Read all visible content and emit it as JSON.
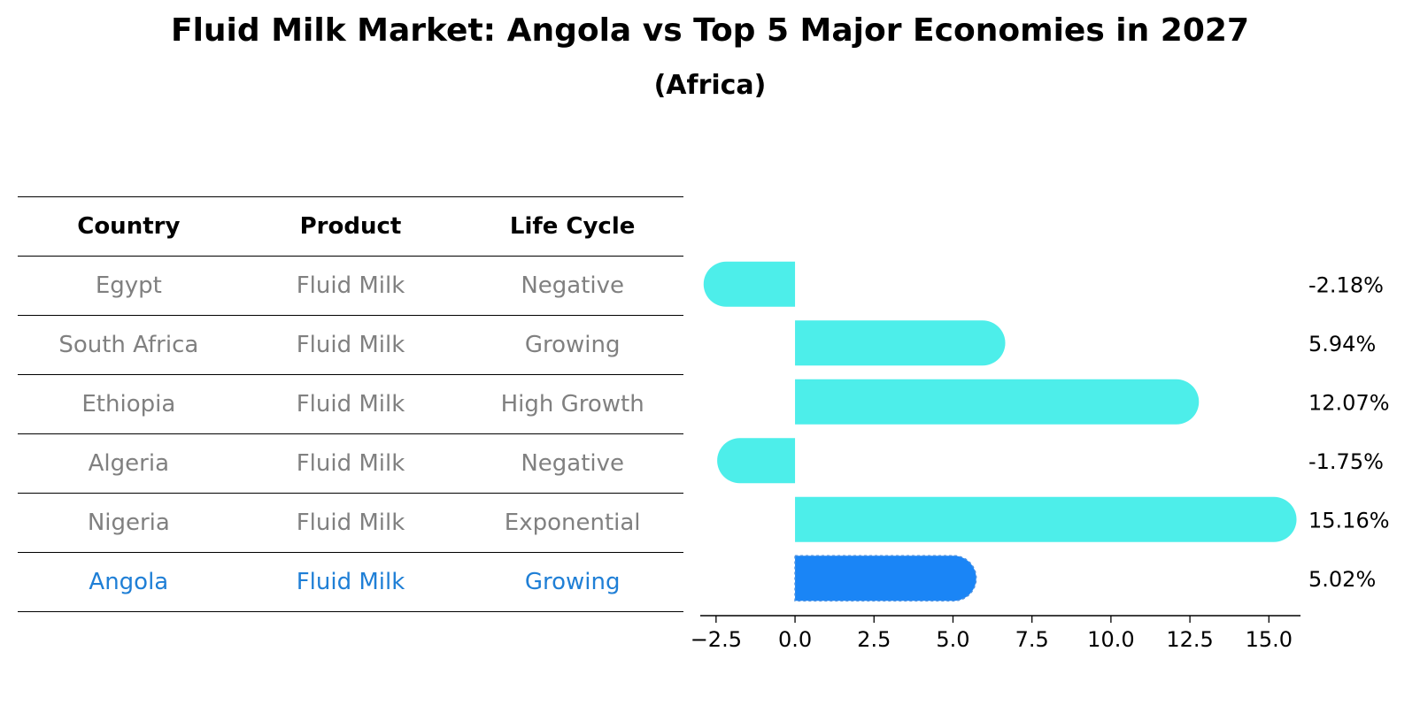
{
  "title": "Fluid Milk Market: Angola vs Top 5 Major Economies in 2027",
  "subtitle": "(Africa)",
  "table": {
    "headers": [
      "Country",
      "Product",
      "Life Cycle"
    ],
    "rows": [
      {
        "country": "Egypt",
        "product": "Fluid Milk",
        "life_cycle": "Negative"
      },
      {
        "country": "South Africa",
        "product": "Fluid Milk",
        "life_cycle": "Growing"
      },
      {
        "country": "Ethiopia",
        "product": "Fluid Milk",
        "life_cycle": "High Growth"
      },
      {
        "country": "Algeria",
        "product": "Fluid Milk",
        "life_cycle": "Negative"
      },
      {
        "country": "Nigeria",
        "product": "Fluid Milk",
        "life_cycle": "Exponential"
      },
      {
        "country": "Angola",
        "product": "Fluid Milk",
        "life_cycle": "Growing"
      }
    ]
  },
  "colors": {
    "bar": "#4DEEEA",
    "highlight_bar": "#1A85F6",
    "highlight_text": "#1F7FD6",
    "muted_text": "#808080"
  },
  "chart_data": {
    "type": "bar",
    "orientation": "horizontal",
    "categories": [
      "Egypt",
      "South Africa",
      "Ethiopia",
      "Algeria",
      "Nigeria",
      "Angola"
    ],
    "values": [
      -2.18,
      5.94,
      12.07,
      -1.75,
      15.16,
      5.02
    ],
    "value_labels": [
      "-2.18%",
      "5.94%",
      "12.07%",
      "-1.75%",
      "15.16%",
      "5.02%"
    ],
    "highlight": "Angola",
    "xlim": [
      -3.0,
      16.0
    ],
    "xticks": [
      -2.5,
      0.0,
      2.5,
      5.0,
      7.5,
      10.0,
      12.5,
      15.0
    ],
    "xtick_labels": [
      "−2.5",
      "0.0",
      "2.5",
      "5.0",
      "7.5",
      "10.0",
      "12.5",
      "15.0"
    ],
    "xlabel": "",
    "ylabel": "",
    "grid": false
  }
}
